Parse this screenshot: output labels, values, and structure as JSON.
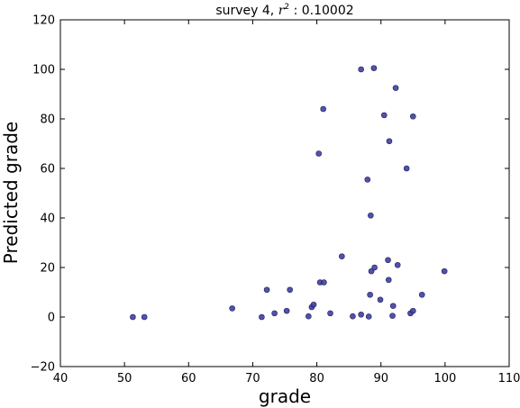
{
  "chart_data": {
    "type": "scatter",
    "title": "survey 4, r² : 0.10002",
    "title_prefix": "survey 4, ",
    "title_var": "r",
    "title_sup": "2",
    "title_suffix": " : 0.10002",
    "xlabel": "grade",
    "ylabel": "Predicted grade",
    "xlim": [
      40,
      110
    ],
    "ylim": [
      -20,
      120
    ],
    "xticks": [
      40,
      50,
      60,
      70,
      80,
      90,
      100,
      110
    ],
    "yticks": [
      -20,
      0,
      20,
      40,
      60,
      80,
      100,
      120
    ],
    "grid": false,
    "marker_color": "#3f3f9f",
    "marker_edge": "#1a1a5e",
    "series": [
      {
        "points": [
          [
            51.3,
            0
          ],
          [
            53.1,
            0
          ],
          [
            66.8,
            3.5
          ],
          [
            71.4,
            0
          ],
          [
            72.2,
            11
          ],
          [
            73.4,
            1.5
          ],
          [
            75.3,
            2.5
          ],
          [
            75.8,
            11
          ],
          [
            78.7,
            0.3
          ],
          [
            79.2,
            4
          ],
          [
            79.5,
            5
          ],
          [
            80.3,
            66
          ],
          [
            80.5,
            14
          ],
          [
            81.0,
            84
          ],
          [
            81.1,
            14
          ],
          [
            82.1,
            1.5
          ],
          [
            83.9,
            24.5
          ],
          [
            85.6,
            0.3
          ],
          [
            86.9,
            100
          ],
          [
            86.9,
            1
          ],
          [
            87.9,
            55.5
          ],
          [
            88.1,
            0.2
          ],
          [
            88.3,
            9
          ],
          [
            88.4,
            41
          ],
          [
            88.5,
            18.5
          ],
          [
            88.9,
            100.5
          ],
          [
            89.0,
            20
          ],
          [
            89.9,
            7
          ],
          [
            90.5,
            81.5
          ],
          [
            91.1,
            23
          ],
          [
            91.2,
            15
          ],
          [
            91.3,
            71
          ],
          [
            91.8,
            0.5
          ],
          [
            91.9,
            4.5
          ],
          [
            92.3,
            92.5
          ],
          [
            92.6,
            21
          ],
          [
            94.0,
            60
          ],
          [
            94.6,
            1.5
          ],
          [
            95.0,
            81
          ],
          [
            95.0,
            2.5
          ],
          [
            96.4,
            9
          ],
          [
            99.9,
            18.5
          ]
        ]
      }
    ]
  }
}
